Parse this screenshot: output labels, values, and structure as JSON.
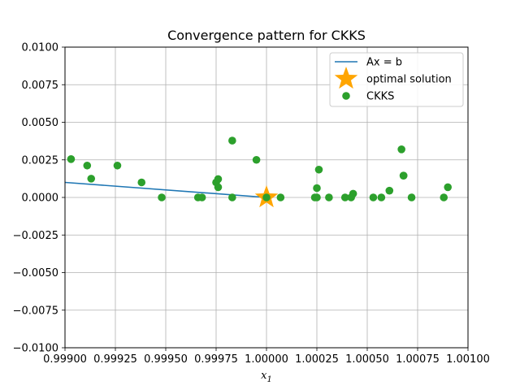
{
  "chart_data": {
    "type": "scatter",
    "title": "Convergence pattern for CKKS",
    "xlabel": "x",
    "xlabel_subscript": "1",
    "ylabel": "",
    "xlim": [
      0.999,
      1.001
    ],
    "ylim": [
      -0.01,
      0.01
    ],
    "x_ticks": [
      0.999,
      0.99925,
      0.9995,
      0.99975,
      1.0,
      1.00025,
      1.0005,
      1.00075,
      1.001
    ],
    "x_tick_labels": [
      "0.99900",
      "0.99925",
      "0.99950",
      "0.99975",
      "1.00000",
      "1.00025",
      "1.00050",
      "1.00075",
      "1.00100"
    ],
    "y_ticks": [
      -0.01,
      -0.0075,
      -0.005,
      -0.0025,
      0.0,
      0.0025,
      0.005,
      0.0075,
      0.01
    ],
    "y_tick_labels": [
      "−0.0100",
      "−0.0075",
      "−0.0050",
      "−0.0025",
      "0.0000",
      "0.0025",
      "0.0050",
      "0.0075",
      "0.0100"
    ],
    "grid": true,
    "legend_position": "top-right",
    "series": [
      {
        "name": "Ax = b",
        "kind": "line",
        "color": "#1f77b4",
        "x": [
          0.999,
          1.0
        ],
        "y": [
          0.001,
          0.0
        ]
      },
      {
        "name": "optimal solution",
        "kind": "star",
        "color": "#ffa500",
        "x": [
          1.0
        ],
        "y": [
          0.0
        ]
      },
      {
        "name": "CKKS",
        "kind": "scatter",
        "color": "#2ca02c",
        "x": [
          0.99903,
          0.99911,
          0.99913,
          0.99926,
          0.99938,
          0.99948,
          0.99966,
          0.99968,
          0.99975,
          0.99976,
          0.99976,
          0.99983,
          0.99983,
          0.99995,
          1.0,
          1.00007,
          1.00024,
          1.00025,
          1.00025,
          1.00026,
          1.00031,
          1.00039,
          1.00042,
          1.00043,
          1.00053,
          1.00057,
          1.00061,
          1.00067,
          1.00068,
          1.00068,
          1.00072,
          1.00088,
          1.0009
        ],
        "y": [
          0.00255,
          0.00212,
          0.00125,
          0.00212,
          0.001,
          0.0,
          0.0,
          0.0,
          0.001,
          0.00122,
          0.00068,
          0.00378,
          0.0,
          0.0025,
          0.0,
          0.0,
          0.0,
          0.0,
          0.00062,
          0.00185,
          0.0,
          0.0,
          0.0,
          0.00025,
          0.0,
          0.0,
          0.00045,
          0.0032,
          0.00145,
          0.00145,
          0.0,
          0.0,
          0.00068
        ]
      }
    ]
  }
}
